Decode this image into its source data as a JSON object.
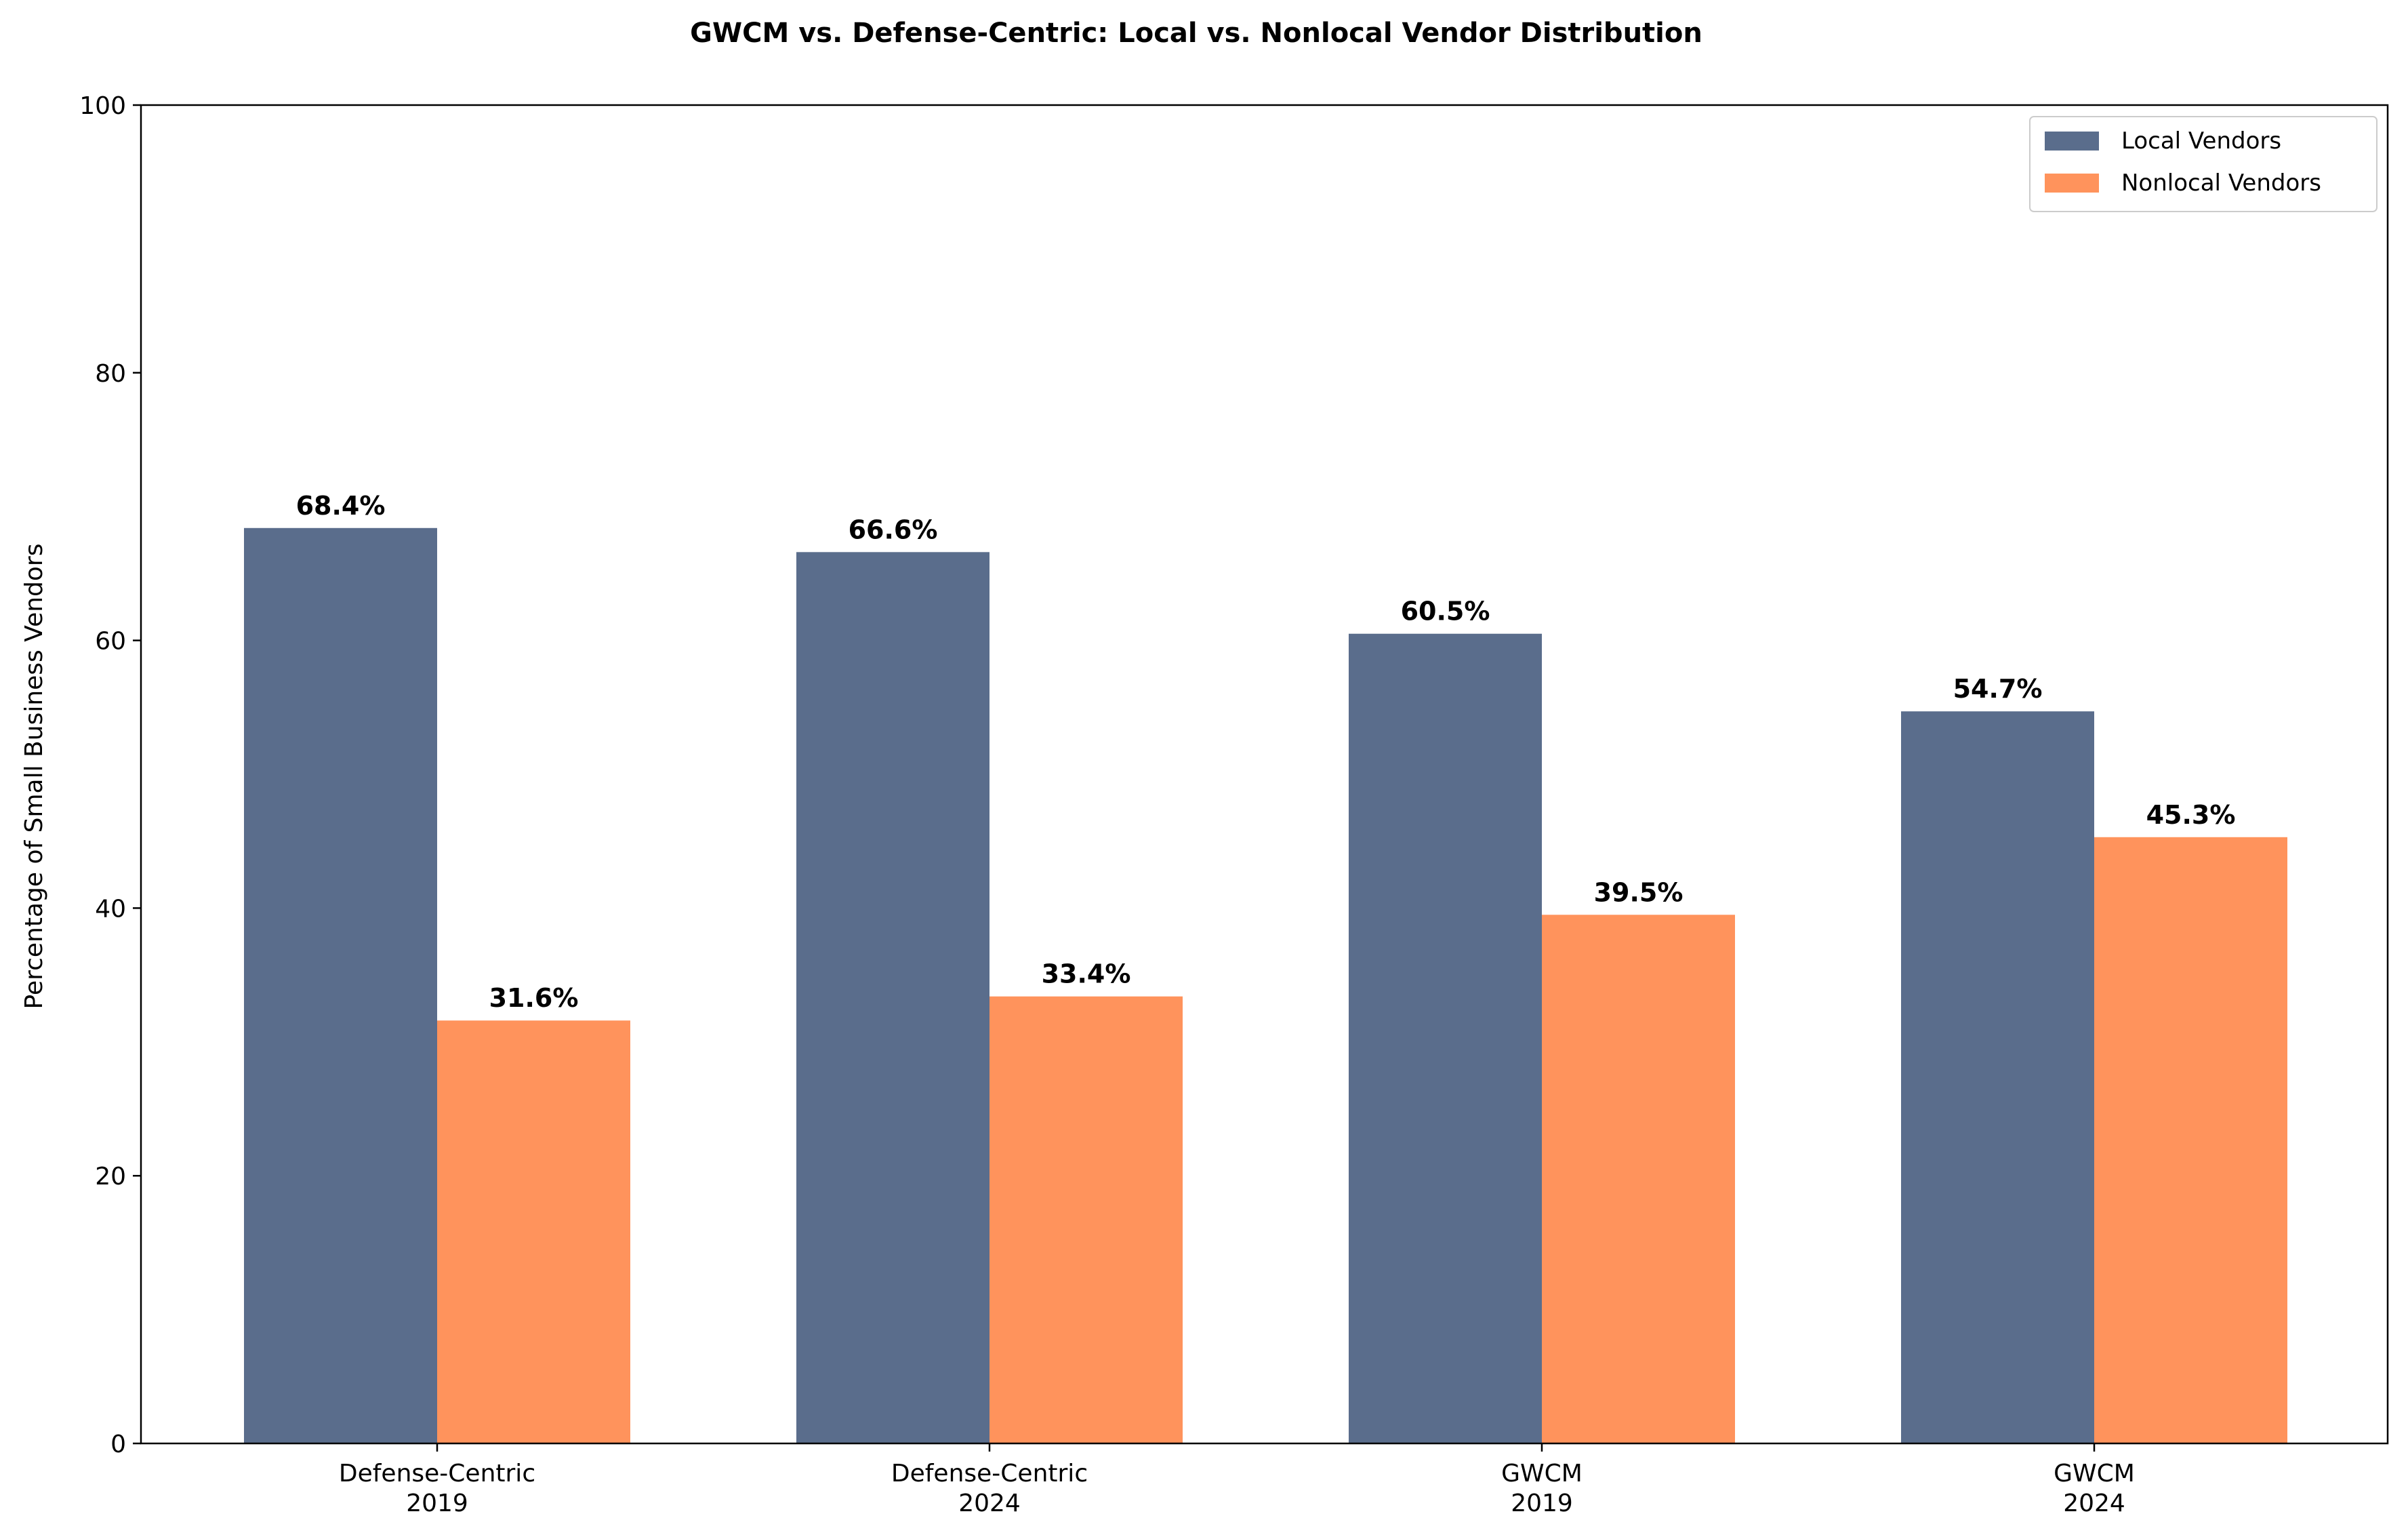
{
  "chart_data": {
    "type": "bar",
    "title": "GWCM vs. Defense-Centric: Local vs. Nonlocal Vendor Distribution",
    "xlabel": "",
    "ylabel": "Percentage of Small Business Vendors",
    "ylim": [
      0,
      100
    ],
    "yticks": [
      0,
      20,
      40,
      60,
      80,
      100
    ],
    "categories": [
      [
        "Defense-Centric",
        "2019"
      ],
      [
        "Defense-Centric",
        "2024"
      ],
      [
        "GWCM",
        "2019"
      ],
      [
        "GWCM",
        "2024"
      ]
    ],
    "series": [
      {
        "name": "Local Vendors",
        "color": "#5a6d8c",
        "values": [
          68.4,
          66.6,
          60.5,
          54.7
        ]
      },
      {
        "name": "Nonlocal Vendors",
        "color": "#ff935c",
        "values": [
          31.6,
          33.4,
          39.5,
          45.3
        ]
      }
    ],
    "value_label_format": "{v}%",
    "legend": {
      "position": "top-right"
    },
    "grid": false
  }
}
